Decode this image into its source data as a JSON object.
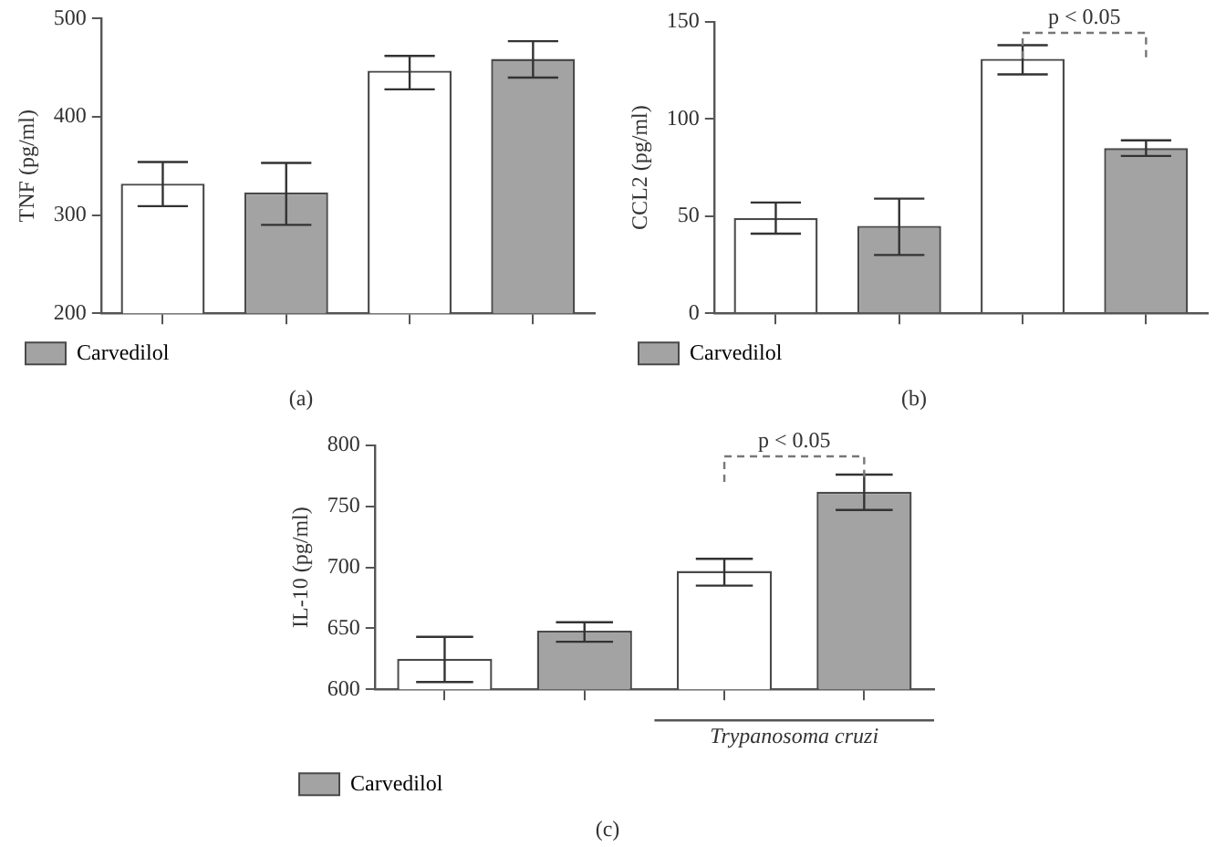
{
  "chart_data": [
    {
      "type": "bar",
      "title": "(a)",
      "ylabel": "TNF (pg/ml)",
      "categories": [
        null,
        null,
        null,
        null
      ],
      "series": [
        {
          "color": "#ffffff",
          "values": [
            332,
            null,
            447,
            null
          ],
          "errors": [
            [
              309,
              354
            ],
            null,
            [
              428,
              462
            ],
            null
          ]
        },
        {
          "name": "Carvedilol",
          "color": "#a3a3a3",
          "values": [
            null,
            323,
            null,
            459
          ],
          "errors": [
            null,
            [
              290,
              353
            ],
            null,
            [
              440,
              477
            ]
          ]
        }
      ],
      "ylim": [
        200,
        500
      ],
      "yticks": [
        200,
        300,
        400,
        500
      ],
      "tick_labels": "y",
      "grid": false,
      "legend": "bottom left"
    },
    {
      "type": "bar",
      "title": "(b)",
      "ylabel": "CCL2 (pg/ml)",
      "categories": [
        null,
        null,
        null,
        null
      ],
      "series": [
        {
          "color": "#ffffff",
          "values": [
            49,
            null,
            131,
            null
          ],
          "errors": [
            [
              41,
              57
            ],
            null,
            [
              123,
              138
            ],
            null
          ]
        },
        {
          "name": "Carvedilol",
          "color": "#a3a3a3",
          "values": [
            null,
            45,
            null,
            85
          ],
          "errors": [
            null,
            [
              30,
              59
            ],
            null,
            [
              81,
              89
            ]
          ]
        }
      ],
      "ylim": [
        0,
        150
      ],
      "yticks": [
        0,
        50,
        100,
        150
      ],
      "tick_labels": "y",
      "grid": false,
      "legend": "bottom left",
      "annotations": [
        "p < 0.05"
      ]
    },
    {
      "type": "bar",
      "title": "(c)",
      "ylabel": "IL-10 (pg/ml)",
      "categories": [
        null,
        null,
        null,
        null
      ],
      "series": [
        {
          "color": "#ffffff",
          "values": [
            625,
            null,
            697,
            null
          ],
          "errors": [
            [
              606,
              643
            ],
            null,
            [
              685,
              707
            ],
            null
          ]
        },
        {
          "name": "Carvedilol",
          "color": "#a3a3a3",
          "values": [
            null,
            648,
            null,
            762
          ],
          "errors": [
            null,
            [
              639,
              655
            ],
            null,
            [
              747,
              776
            ]
          ]
        }
      ],
      "ylim": [
        600,
        800
      ],
      "yticks": [
        600,
        650,
        700,
        750,
        800
      ],
      "tick_labels": "y",
      "grid": false,
      "legend": "bottom left",
      "annotations": [
        "p < 0.05",
        "Trypanosoma cruzi"
      ]
    }
  ]
}
